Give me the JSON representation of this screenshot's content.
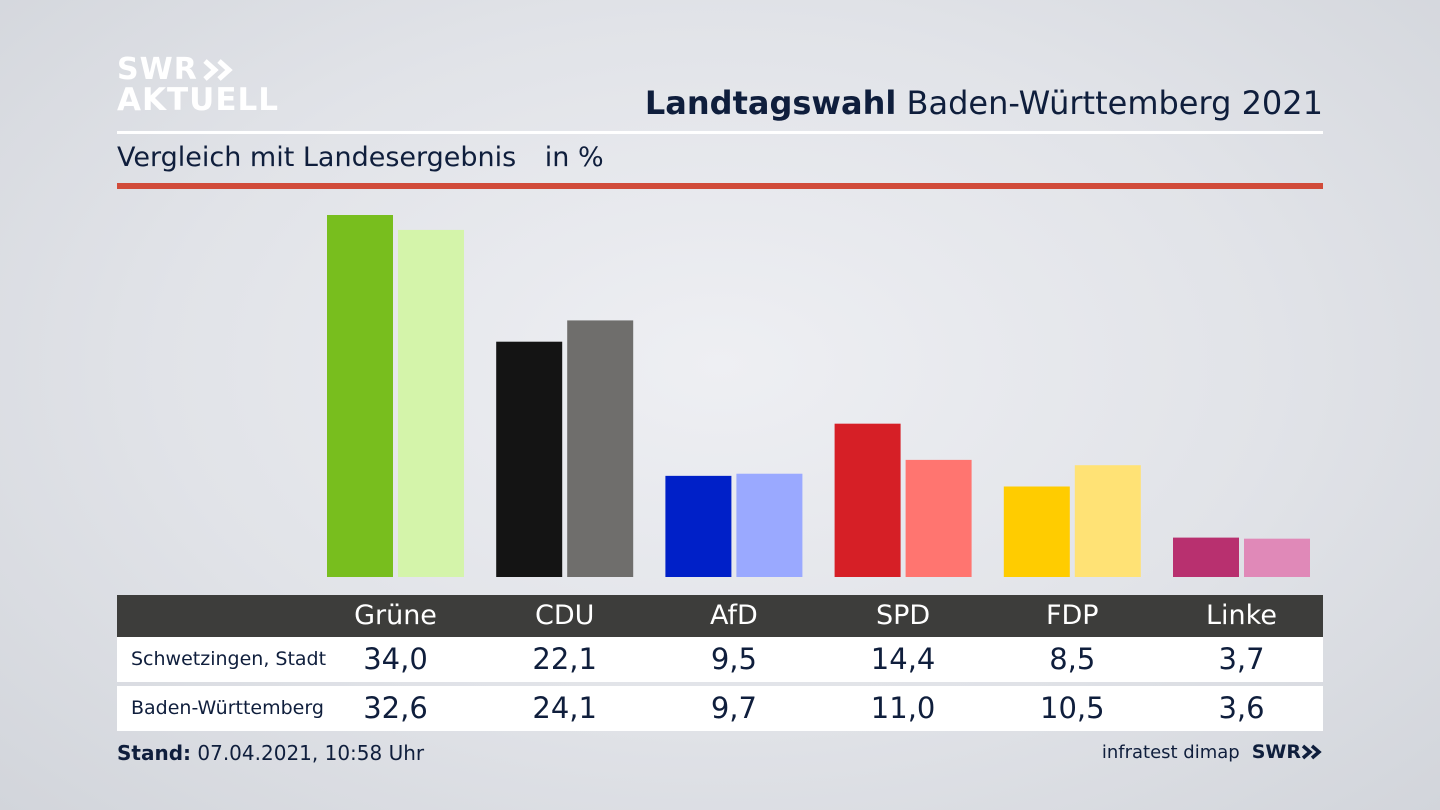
{
  "brand": {
    "line1": "SWR",
    "line2": "AKTUELL",
    "color": "#ffffff"
  },
  "header": {
    "title_bold": "Landtagswahl",
    "title_rest": "Baden-Württemberg 2021"
  },
  "subheader": {
    "text": "Vergleich mit Landesergebnis",
    "unit": "in %"
  },
  "colors": {
    "accent_line": "#d14b3a",
    "table_header_bg": "#3d3d3b"
  },
  "chart_data": {
    "type": "bar",
    "title": "Vergleich mit Landesergebnis",
    "ylabel": "in %",
    "ylim": [
      0,
      34
    ],
    "categories": [
      "Grüne",
      "CDU",
      "AfD",
      "SPD",
      "FDP",
      "Linke"
    ],
    "series": [
      {
        "name": "Schwetzingen, Stadt",
        "values": [
          34.0,
          22.1,
          9.5,
          14.4,
          8.5,
          3.7
        ],
        "labels": [
          "34,0",
          "22,1",
          "9,5",
          "14,4",
          "8,5",
          "3,7"
        ],
        "colors": [
          "#78be1e",
          "#141414",
          "#0020c8",
          "#d61f26",
          "#ffcc00",
          "#b8306f"
        ]
      },
      {
        "name": "Baden-Württemberg",
        "values": [
          32.6,
          24.1,
          9.7,
          11.0,
          10.5,
          3.6
        ],
        "labels": [
          "32,6",
          "24,1",
          "9,7",
          "11,0",
          "10,5",
          "3,6"
        ],
        "colors": [
          "#d4f4aa",
          "#6f6e6c",
          "#9aa9ff",
          "#ff7570",
          "#ffe275",
          "#e089b8"
        ]
      }
    ]
  },
  "footer": {
    "stand_label": "Stand:",
    "stand_value": "07.04.2021, 10:58 Uhr",
    "source": "infratest dimap",
    "logo": "SWR"
  }
}
